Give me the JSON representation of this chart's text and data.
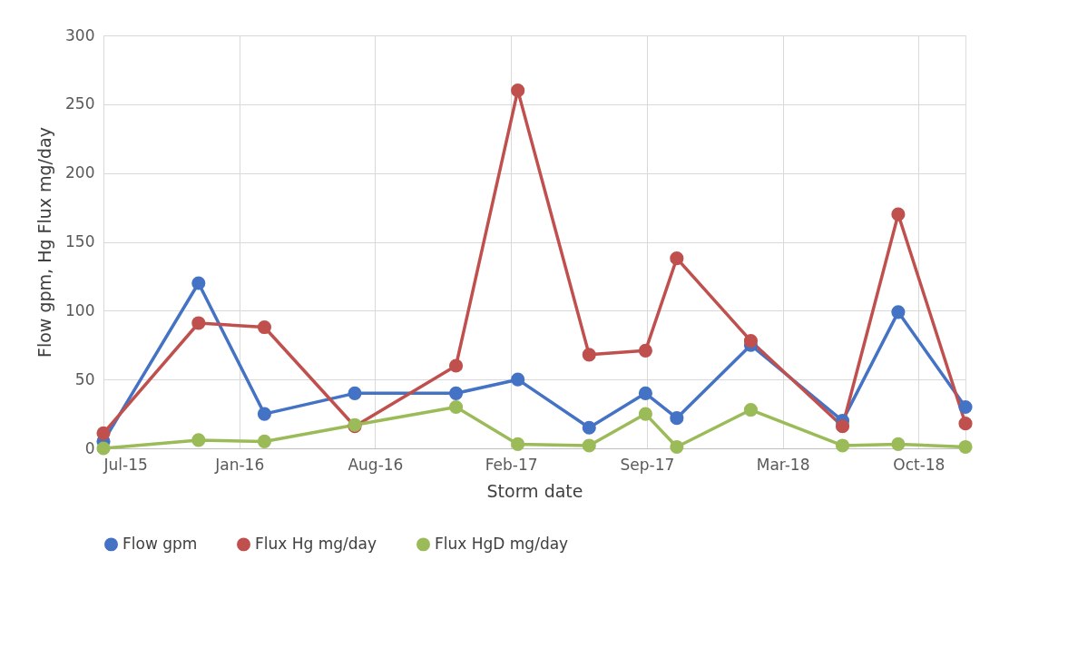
{
  "chart_data": {
    "type": "line",
    "xlabel": "Storm date",
    "ylabel": "Flow gpm, Hg Flux mg/day",
    "x": [
      "2015-07-01",
      "2015-11-18",
      "2016-02-23",
      "2016-07-05",
      "2016-12-01",
      "2017-03-02",
      "2017-06-15",
      "2017-09-06",
      "2017-10-22",
      "2018-02-08",
      "2018-06-23",
      "2018-09-13",
      "2018-12-21"
    ],
    "series": [
      {
        "name": "Flow gpm",
        "color": "#4472c4",
        "values": [
          5,
          120,
          25,
          40,
          40,
          50,
          15,
          40,
          22,
          75,
          20,
          99,
          30
        ]
      },
      {
        "name": "Flux Hg mg/day",
        "color": "#c0504d",
        "values": [
          11,
          91,
          88,
          16,
          60,
          260,
          68,
          71,
          138,
          78,
          16,
          170,
          18
        ]
      },
      {
        "name": "Flux HgD mg/day",
        "color": "#9bbb59",
        "values": [
          0,
          6,
          5,
          17,
          30,
          3,
          2,
          25,
          1,
          28,
          2,
          3,
          1
        ]
      }
    ],
    "xlim": [
      "2015-07-01",
      "2018-12-21"
    ],
    "xticks": [
      {
        "value": "2015-07-01",
        "label": "Jul-15"
      },
      {
        "value": "2016-01-17",
        "label": "Jan-16"
      },
      {
        "value": "2016-08-04",
        "label": "Aug-16"
      },
      {
        "value": "2017-02-20",
        "label": "Feb-17"
      },
      {
        "value": "2017-09-08",
        "label": "Sep-17"
      },
      {
        "value": "2018-03-27",
        "label": "Mar-18"
      },
      {
        "value": "2018-10-13",
        "label": "Oct-18"
      }
    ],
    "ylim": [
      0,
      300
    ],
    "yticks": [
      0,
      50,
      100,
      150,
      200,
      250,
      300
    ],
    "grid": true,
    "legend": "bottom",
    "marker": "circle",
    "line_style": "solid"
  }
}
